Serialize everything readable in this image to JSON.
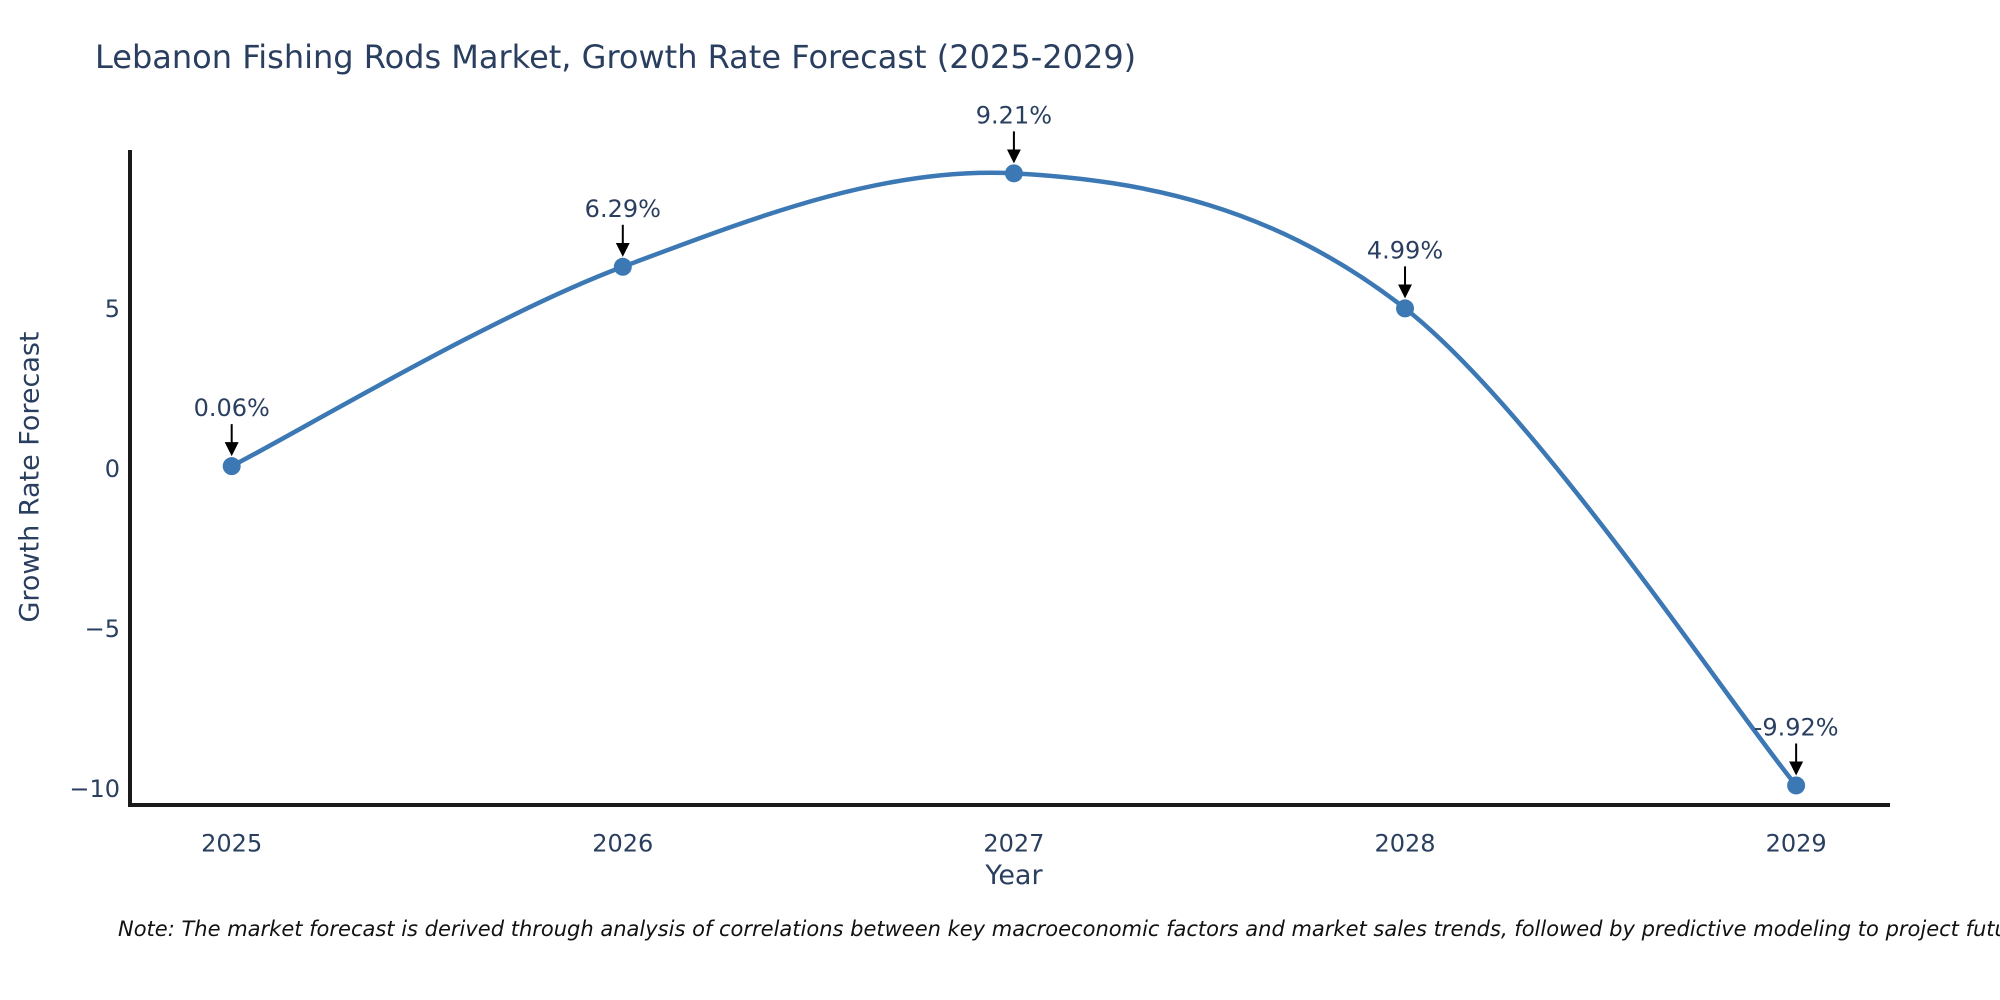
{
  "chart": {
    "title": "Lebanon Fishing Rods Market, Growth Rate Forecast (2025-2029)",
    "ylabel": "Growth Rate Forecast",
    "xlabel": "Year",
    "note": "Note: The market forecast is derived through analysis of correlations between key macroeconomic factors and market sales trends, followed by predictive modeling to project future sales."
  },
  "chart_data": {
    "type": "line",
    "title": "Lebanon Fishing Rods Market, Growth Rate Forecast (2025-2029)",
    "xlabel": "Year",
    "ylabel": "Growth Rate Forecast",
    "x": [
      2025,
      2026,
      2027,
      2028,
      2029
    ],
    "series": [
      {
        "name": "Growth Rate Forecast",
        "values": [
          0.06,
          6.29,
          9.21,
          4.99,
          -9.92
        ]
      }
    ],
    "point_labels": [
      "0.06%",
      "6.29%",
      "9.21%",
      "4.99%",
      "-9.92%"
    ],
    "x_tick_labels": [
      "2025",
      "2026",
      "2027",
      "2028",
      "2029"
    ],
    "y_ticks": [
      5,
      0,
      -5,
      -10
    ],
    "y_tick_labels": [
      "5",
      "0",
      "−5",
      "−10"
    ],
    "xlim": [
      2024.74,
      2029.24
    ],
    "ylim": [
      -10.53,
      9.94
    ],
    "line_shape": "spline",
    "grid": false,
    "legend_position": "none",
    "colors": {
      "line": "#3c78b4",
      "marker": "#3c78b4",
      "arrow": "#000000",
      "axis": "#1a1a1a",
      "text": "#2a3f5f"
    }
  }
}
